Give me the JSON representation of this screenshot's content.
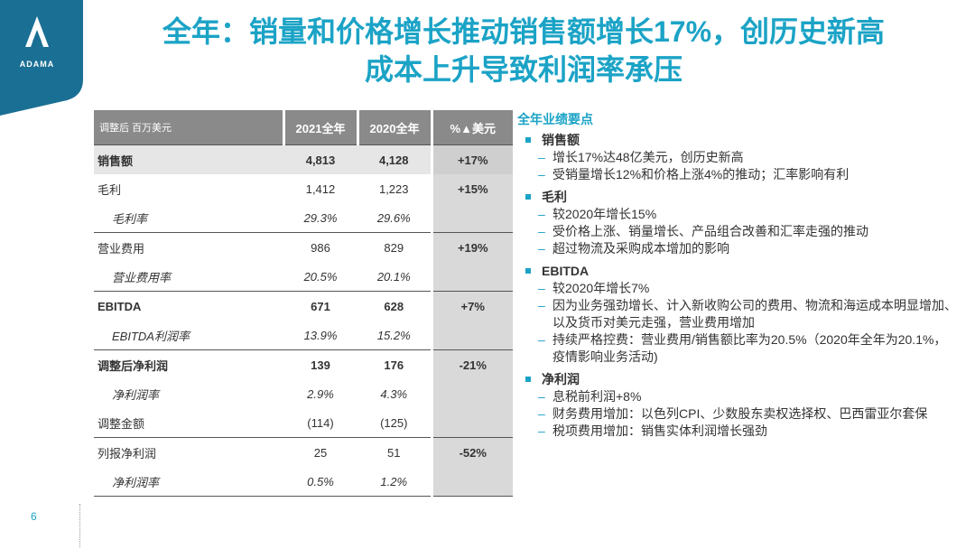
{
  "brand": {
    "logo_text": "ADAMA",
    "color": "#1ba3c6"
  },
  "title": {
    "line1": "全年：销量和价格增长推动销售额增长17%，创历史新高",
    "line2": "成本上升导致利润率承压"
  },
  "table": {
    "headers": [
      "调整后 百万美元",
      "2021全年",
      "2020全年",
      "%▲美元"
    ],
    "rows": [
      {
        "label": "销售额",
        "v2021": "4,813",
        "v2020": "4,128",
        "pct": "+17%"
      },
      {
        "label": "毛利",
        "v2021": "1,412",
        "v2020": "1,223",
        "pct": "+15%"
      },
      {
        "label": "毛利率",
        "v2021": "29.3%",
        "v2020": "29.6%",
        "pct": ""
      },
      {
        "label": "营业费用",
        "v2021": "986",
        "v2020": "829",
        "pct": "+19%"
      },
      {
        "label": "营业费用率",
        "v2021": "20.5%",
        "v2020": "20.1%",
        "pct": ""
      },
      {
        "label": "EBITDA",
        "v2021": "671",
        "v2020": "628",
        "pct": "+7%"
      },
      {
        "label": "EBITDA利润率",
        "v2021": "13.9%",
        "v2020": "15.2%",
        "pct": ""
      },
      {
        "label": "调整后净利润",
        "v2021": "139",
        "v2020": "176",
        "pct": "-21%"
      },
      {
        "label": "净利润率",
        "v2021": "2.9%",
        "v2020": "4.3%",
        "pct": ""
      },
      {
        "label": "调整金额",
        "v2021": "(114)",
        "v2020": "(125)",
        "pct": ""
      },
      {
        "label": "列报净利润",
        "v2021": "25",
        "v2020": "51",
        "pct": "-52%"
      },
      {
        "label": "净利润率",
        "v2021": "0.5%",
        "v2020": "1.2%",
        "pct": ""
      }
    ]
  },
  "highlights": {
    "title": "全年业绩要点",
    "sections": [
      {
        "head": "销售额",
        "items": [
          "增长17%达48亿美元，创历史新高",
          "受销量增长12%和价格上涨4%的推动；汇率影响有利"
        ]
      },
      {
        "head": "毛利",
        "items": [
          "较2020年增长15%",
          "受价格上涨、销量增长、产品组合改善和汇率走强的推动",
          "超过物流及采购成本增加的影响"
        ]
      },
      {
        "head": "EBITDA",
        "items": [
          "较2020年增长7%",
          "因为业务强劲增长、计入新收购公司的费用、物流和海运成本明显增加、以及货币对美元走强，营业费用增加",
          "持续严格控费：营业费用/销售额比率为20.5%（2020年全年为20.1%，疫情影响业务活动)"
        ]
      },
      {
        "head": "净利润",
        "items": [
          "息税前利润+8%",
          "财务费用增加：以色列CPI、少数股东卖权选择权、巴西雷亚尔套保",
          "税项费用增加：销售实体利润增长强劲"
        ]
      }
    ]
  },
  "page_number": "6"
}
